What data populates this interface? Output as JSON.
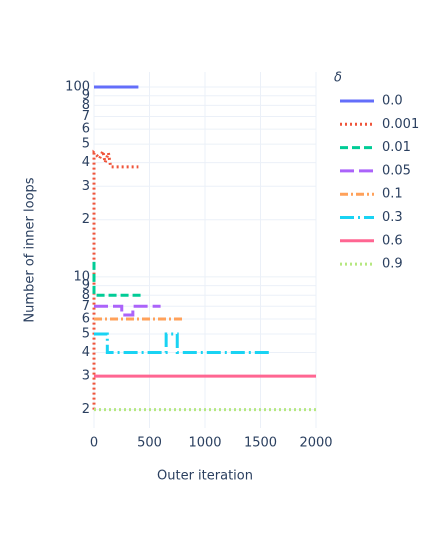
{
  "chart_data": {
    "type": "line",
    "xlabel": "Outer iteration",
    "ylabel": "Number of inner loops",
    "legend_title": "δ",
    "xlim": [
      0,
      2000
    ],
    "xticks": [
      0,
      500,
      1000,
      1500,
      2000
    ],
    "ylim": [
      1.6,
      120
    ],
    "log_y": true,
    "grid": true,
    "legend": "right",
    "yticks": [
      2,
      3,
      4,
      5,
      6,
      7,
      8,
      9,
      10,
      {
        "value": 20,
        "label": "2"
      },
      {
        "value": 30,
        "label": "3"
      },
      {
        "value": 40,
        "label": "4"
      },
      {
        "value": 50,
        "label": "5"
      },
      {
        "value": 60,
        "label": "6"
      },
      {
        "value": 70,
        "label": "7"
      },
      {
        "value": 80,
        "label": "8"
      },
      {
        "value": 90,
        "label": "9"
      },
      100
    ],
    "series": [
      {
        "name": "0.0",
        "color": "#636efa",
        "dash": "solid",
        "x": [
          0,
          400
        ],
        "values": [
          100,
          100
        ]
      },
      {
        "name": "0.001",
        "color": "#EF553B",
        "dash": "dot",
        "x": [
          0,
          0,
          20,
          50,
          80,
          100,
          130,
          150,
          400
        ],
        "values": [
          2,
          45,
          44,
          42,
          46,
          40,
          45,
          38,
          38
        ]
      },
      {
        "name": "0.01",
        "color": "#00cc96",
        "dash": "dash",
        "x": [
          0,
          0,
          450
        ],
        "values": [
          12,
          8,
          8
        ]
      },
      {
        "name": "0.05",
        "color": "#ab63fa",
        "dash": "longdash",
        "x": [
          0,
          250,
          250,
          350,
          350,
          600
        ],
        "values": [
          7,
          7,
          6.3,
          6.3,
          7,
          7
        ]
      },
      {
        "name": "0.1",
        "color": "#FFA15A",
        "dash": "dashdot",
        "x": [
          0,
          800
        ],
        "values": [
          6,
          6
        ]
      },
      {
        "name": "0.3",
        "color": "#19d3f3",
        "dash": "longdashdot",
        "x": [
          0,
          120,
          120,
          650,
          650,
          750,
          750,
          1600
        ],
        "values": [
          5,
          5,
          4,
          4,
          5,
          5,
          4,
          4
        ]
      },
      {
        "name": "0.6",
        "color": "#FF6692",
        "dash": "solid",
        "x": [
          0,
          2000
        ],
        "values": [
          3,
          3
        ]
      },
      {
        "name": "0.9",
        "color": "#B6E880",
        "dash": "dot",
        "x": [
          0,
          2000
        ],
        "values": [
          2,
          2
        ]
      }
    ]
  }
}
